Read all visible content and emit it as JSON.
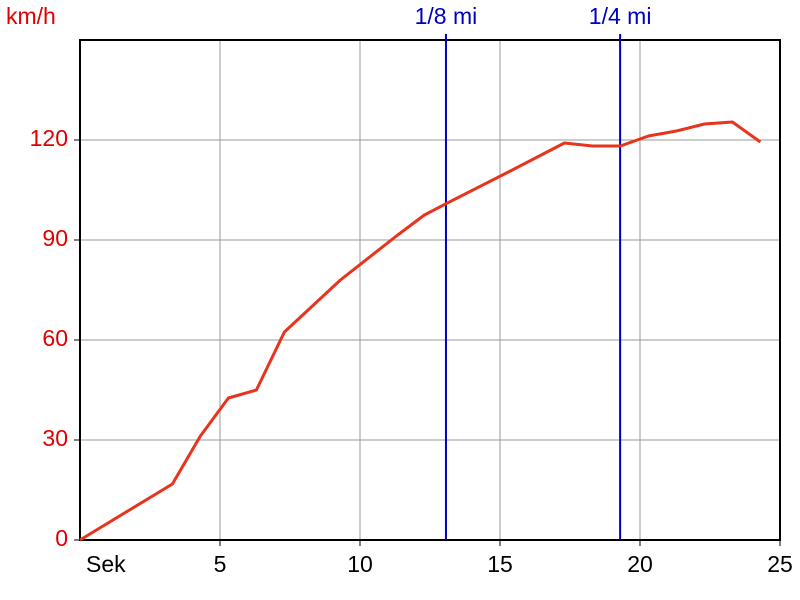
{
  "chart_data": {
    "type": "line",
    "y_label": "km/h",
    "x_label": "Sek",
    "x": [
      0,
      3.3,
      4.3,
      5.3,
      6.3,
      7.3,
      9.3,
      11.3,
      12.3,
      13.1,
      15.3,
      17.3,
      18.3,
      19.3,
      20.3,
      21.3,
      22.3,
      23.3,
      24.3
    ],
    "series": [
      {
        "color": "#e8341c",
        "values": [
          0,
          16.8,
          31.2,
          42.6,
          45,
          62.4,
          78,
          91.2,
          97.5,
          101,
          110.4,
          119.1,
          118.2,
          118.2,
          121.2,
          122.7,
          124.8,
          125.4,
          119.4
        ]
      }
    ],
    "markers": [
      {
        "label": "1/8 mi",
        "x": 13.07
      },
      {
        "label": "1/4 mi",
        "x": 19.29
      }
    ],
    "marker_color": "#0000c0",
    "xlim": [
      0,
      25
    ],
    "xticks": [
      5,
      10,
      15,
      20,
      25
    ],
    "ylim": [
      0,
      150
    ],
    "yticks": [
      0,
      30,
      60,
      90,
      120
    ],
    "grid": true
  }
}
